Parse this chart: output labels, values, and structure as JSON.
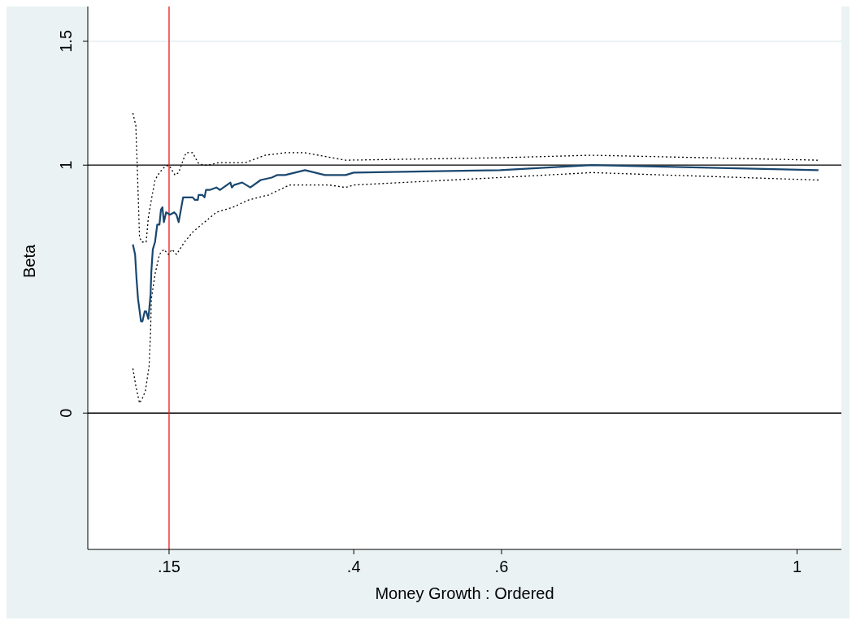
{
  "chart_data": {
    "type": "line",
    "xlabel": "Money Growth : Ordered",
    "ylabel": "Beta",
    "xlim": [
      0.04,
      1.06
    ],
    "xticks": [
      {
        "value": 0.15,
        "label": ".15"
      },
      {
        "value": 0.4,
        "label": ".4"
      },
      {
        "value": 0.6,
        "label": ".6"
      },
      1
    ],
    "ylim": [
      -0.55,
      1.64
    ],
    "yticks": [
      0,
      1,
      1.5
    ],
    "grid": false,
    "marker": "none",
    "legend": false,
    "ref_lines": [
      {
        "axis": "y",
        "value": 0,
        "color": "#000000"
      },
      {
        "axis": "y",
        "value": 1,
        "color": "#000000"
      },
      {
        "axis": "y",
        "value": 1.5,
        "color": "#eaf2f3"
      },
      {
        "axis": "x",
        "value": 0.15,
        "color": "#e8191a"
      }
    ],
    "series": [
      {
        "color": "#1a476f",
        "line_style": "solid",
        "x": [
          0.101,
          0.104,
          0.106,
          0.108,
          0.112,
          0.114,
          0.117,
          0.119,
          0.122,
          0.125,
          0.126,
          0.128,
          0.131,
          0.134,
          0.137,
          0.139,
          0.141,
          0.143,
          0.146,
          0.151,
          0.157,
          0.16,
          0.163,
          0.169,
          0.182,
          0.185,
          0.189,
          0.19,
          0.195,
          0.198,
          0.2,
          0.205,
          0.214,
          0.219,
          0.233,
          0.235,
          0.238,
          0.249,
          0.26,
          0.274,
          0.289,
          0.296,
          0.307,
          0.334,
          0.361,
          0.389,
          0.4,
          0.598,
          0.722,
          1.029
        ],
        "values": [
          0.68,
          0.64,
          0.54,
          0.46,
          0.37,
          0.37,
          0.41,
          0.41,
          0.38,
          0.48,
          0.57,
          0.66,
          0.69,
          0.76,
          0.76,
          0.82,
          0.83,
          0.77,
          0.81,
          0.8,
          0.81,
          0.8,
          0.77,
          0.87,
          0.87,
          0.86,
          0.86,
          0.88,
          0.88,
          0.87,
          0.9,
          0.9,
          0.91,
          0.9,
          0.93,
          0.91,
          0.92,
          0.93,
          0.91,
          0.94,
          0.95,
          0.96,
          0.96,
          0.98,
          0.96,
          0.96,
          0.97,
          0.98,
          1.0,
          0.98
        ]
      },
      {
        "color": "#000000",
        "line_style": "dotted",
        "x": [
          0.101,
          0.105,
          0.107,
          0.11,
          0.113,
          0.119,
          0.122,
          0.126,
          0.131,
          0.137,
          0.143,
          0.149,
          0.152,
          0.158,
          0.163,
          0.169,
          0.173,
          0.182,
          0.189,
          0.196,
          0.203,
          0.217,
          0.233,
          0.253,
          0.28,
          0.307,
          0.334,
          0.389,
          0.598,
          0.722,
          1.029
        ],
        "values": [
          1.21,
          1.16,
          0.99,
          0.71,
          0.69,
          0.69,
          0.79,
          0.86,
          0.94,
          0.97,
          0.99,
          1.0,
          0.99,
          0.96,
          0.97,
          1.02,
          1.05,
          1.05,
          1.01,
          1.0,
          1.0,
          1.01,
          1.01,
          1.01,
          1.04,
          1.05,
          1.05,
          1.02,
          1.03,
          1.04,
          1.02
        ]
      },
      {
        "color": "#000000",
        "line_style": "dotted",
        "x": [
          0.101,
          0.105,
          0.11,
          0.114,
          0.118,
          0.123,
          0.125,
          0.126,
          0.131,
          0.137,
          0.143,
          0.149,
          0.154,
          0.16,
          0.171,
          0.182,
          0.198,
          0.214,
          0.236,
          0.258,
          0.285,
          0.313,
          0.34,
          0.367,
          0.389,
          0.4,
          0.598,
          0.722,
          1.029
        ],
        "values": [
          0.18,
          0.11,
          0.04,
          0.06,
          0.09,
          0.19,
          0.33,
          0.46,
          0.56,
          0.64,
          0.66,
          0.64,
          0.66,
          0.64,
          0.69,
          0.73,
          0.77,
          0.81,
          0.83,
          0.86,
          0.88,
          0.92,
          0.92,
          0.92,
          0.91,
          0.92,
          0.95,
          0.97,
          0.94
        ]
      }
    ]
  }
}
